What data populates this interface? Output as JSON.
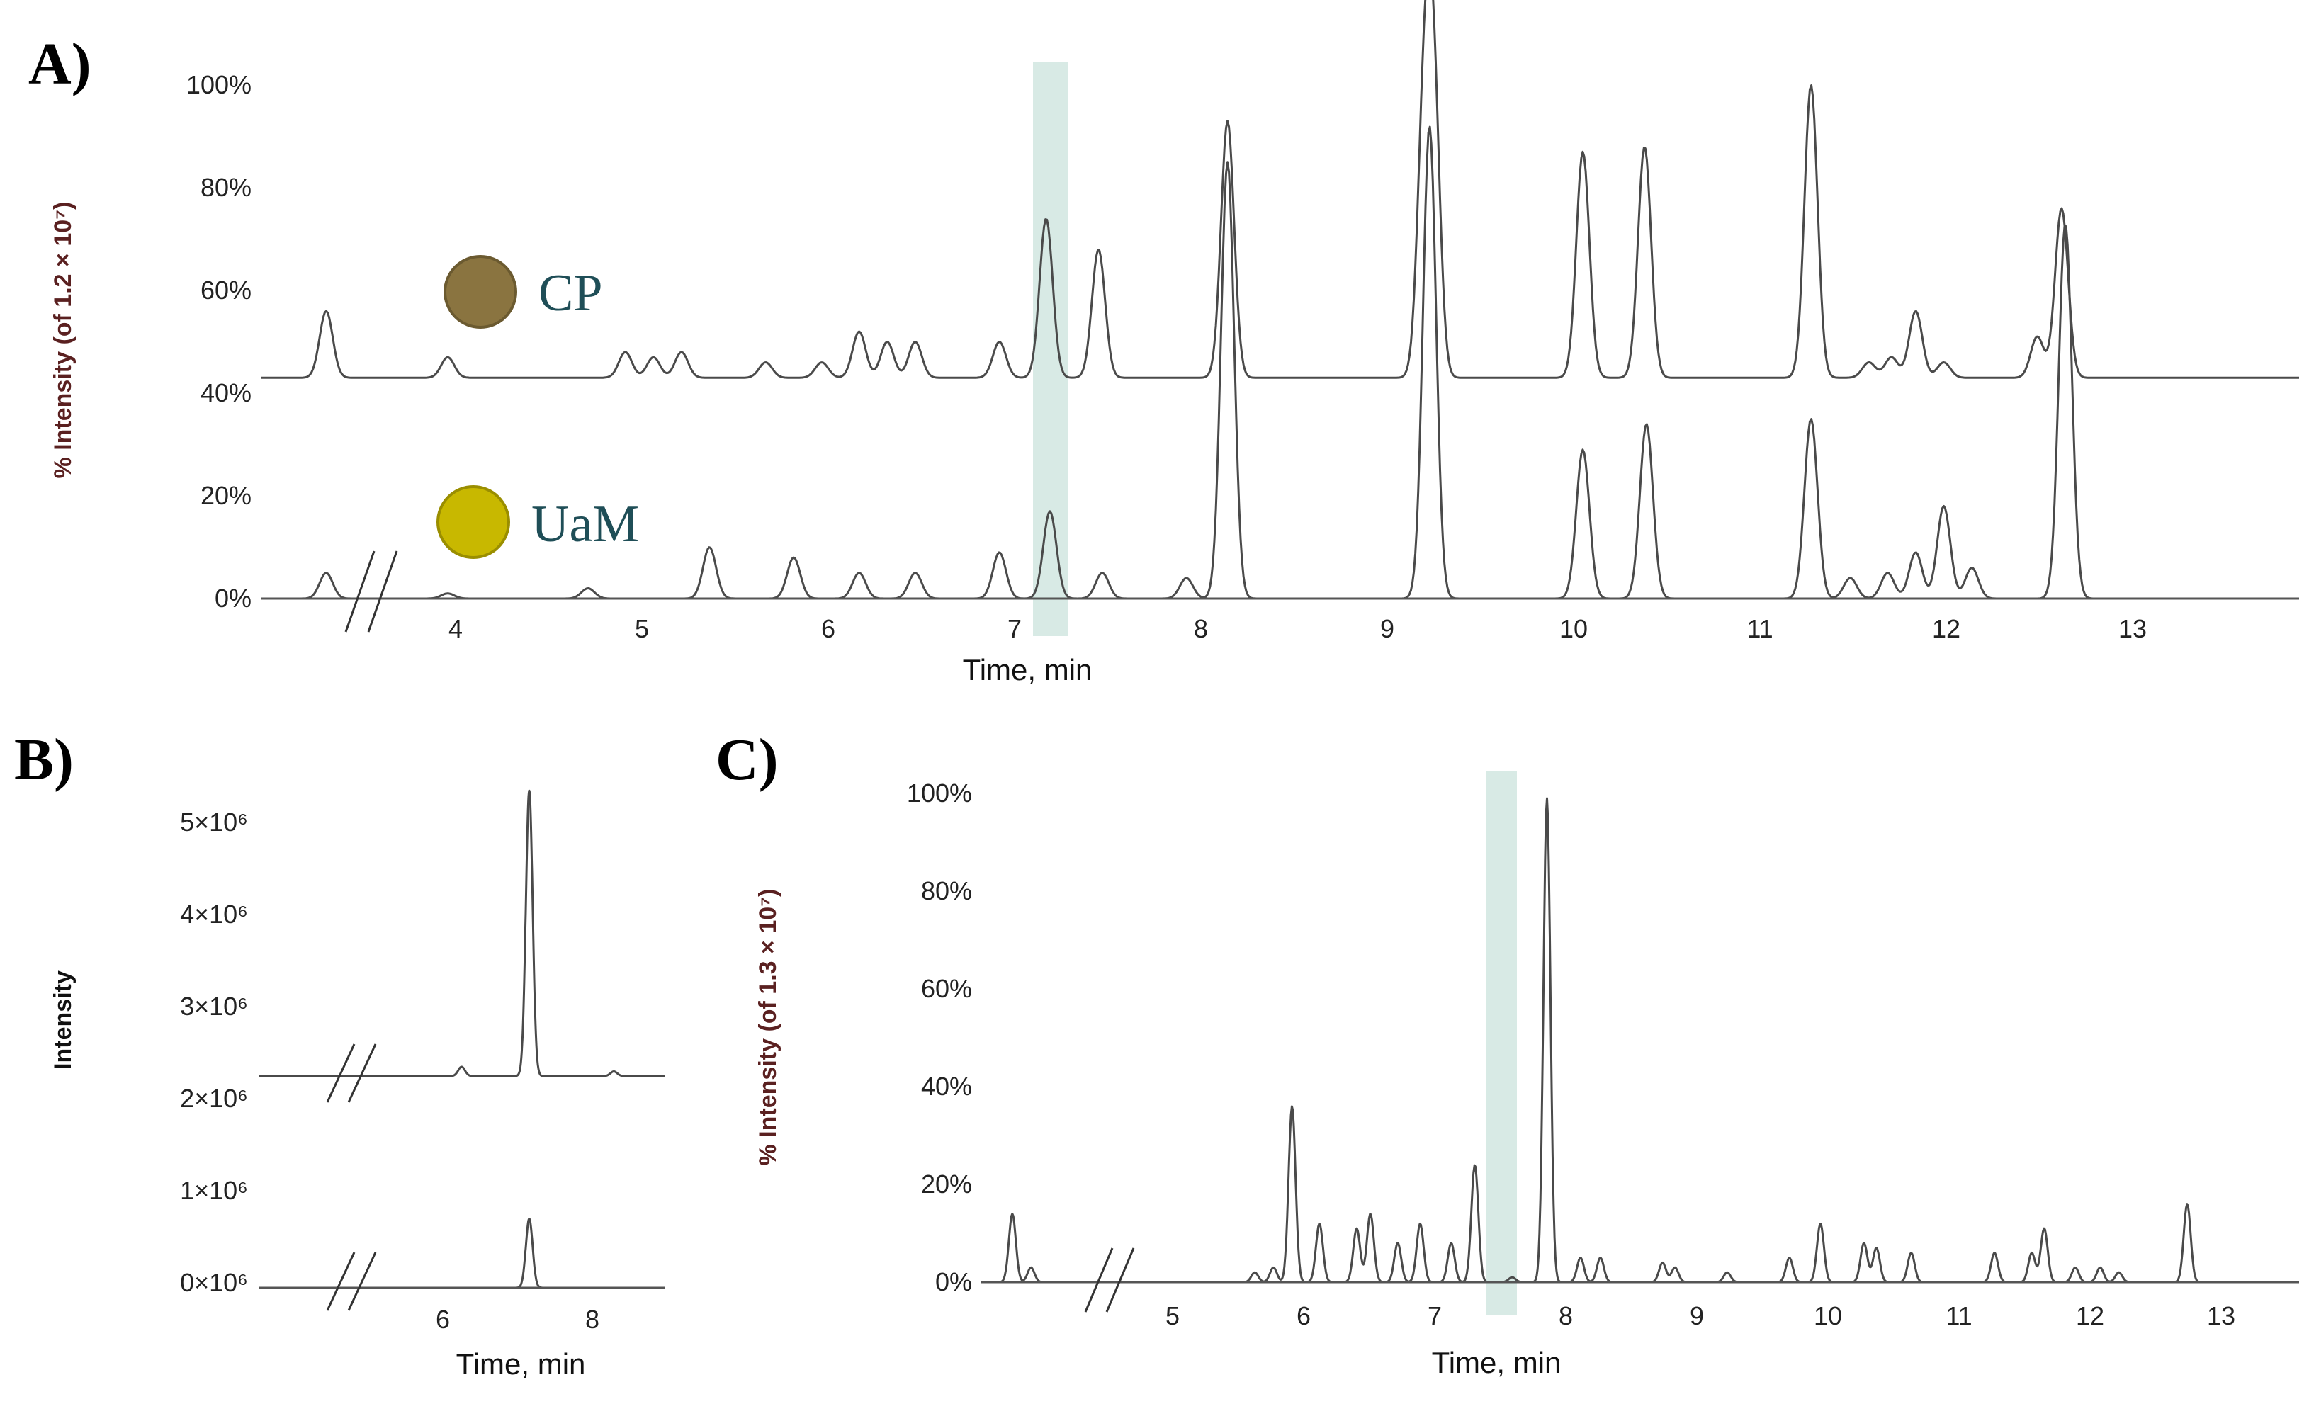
{
  "panels": {
    "a": {
      "letter": "A)",
      "ylabel": "% Intensity (of 1.2 × 10⁷)",
      "xlabel": "Time, min",
      "yticks": [
        "0%",
        "20%",
        "40%",
        "60%",
        "80%",
        "100%"
      ],
      "xticks": [
        "4",
        "5",
        "6",
        "7",
        "8",
        "9",
        "10",
        "11",
        "12",
        "13"
      ],
      "legend": [
        {
          "label": "CP",
          "color": "#8a7440"
        },
        {
          "label": "UaM",
          "color": "#c8b800"
        }
      ]
    },
    "b": {
      "letter": "B)",
      "ylabel": "Intensity",
      "xlabel": "Time, min",
      "yticks": [
        "0×10⁶",
        "1×10⁶",
        "2×10⁶",
        "3×10⁶",
        "4×10⁶",
        "5×10⁶"
      ],
      "xticks": [
        "6",
        "8"
      ]
    },
    "c": {
      "letter": "C)",
      "ylabel": "% Intensity (of 1.3 × 10⁷)",
      "xlabel": "Time, min",
      "yticks": [
        "0%",
        "20%",
        "40%",
        "60%",
        "80%",
        "100%"
      ],
      "xticks": [
        "5",
        "6",
        "7",
        "8",
        "9",
        "10",
        "11",
        "12",
        "13"
      ]
    }
  },
  "chart_data": [
    {
      "panel": "A",
      "type": "line",
      "xlabel": "Time, min",
      "ylabel": "% Intensity (of 1.2 × 10⁷)",
      "xlim": [
        3.0,
        13.9
      ],
      "ylim": [
        0,
        100
      ],
      "axis_break": true,
      "highlight_range": [
        7.1,
        7.33
      ],
      "series": [
        {
          "name": "CP",
          "offset": 43,
          "peaks": [
            [
              3.35,
              13
            ],
            [
              4.0,
              4
            ],
            [
              4.95,
              5
            ],
            [
              5.1,
              4
            ],
            [
              5.25,
              5
            ],
            [
              5.7,
              3
            ],
            [
              6.0,
              3
            ],
            [
              6.2,
              9
            ],
            [
              6.35,
              7
            ],
            [
              6.5,
              7
            ],
            [
              6.95,
              7
            ],
            [
              7.2,
              31
            ],
            [
              7.48,
              25
            ],
            [
              8.17,
              50
            ],
            [
              9.22,
              48
            ],
            [
              9.27,
              56
            ],
            [
              10.07,
              44
            ],
            [
              10.4,
              45
            ],
            [
              11.29,
              57
            ],
            [
              11.6,
              3
            ],
            [
              11.72,
              4
            ],
            [
              11.85,
              13
            ],
            [
              12.0,
              3
            ],
            [
              12.5,
              8
            ],
            [
              12.63,
              33
            ]
          ]
        },
        {
          "name": "UaM",
          "offset": 0,
          "peaks": [
            [
              3.35,
              5
            ],
            [
              4.0,
              1
            ],
            [
              4.75,
              2
            ],
            [
              5.4,
              10
            ],
            [
              5.85,
              8
            ],
            [
              6.2,
              5
            ],
            [
              6.5,
              5
            ],
            [
              6.95,
              9
            ],
            [
              7.22,
              17
            ],
            [
              7.5,
              5
            ],
            [
              7.95,
              4
            ],
            [
              8.17,
              85
            ],
            [
              9.25,
              92
            ],
            [
              10.07,
              29
            ],
            [
              10.41,
              34
            ],
            [
              11.29,
              35
            ],
            [
              11.5,
              4
            ],
            [
              11.7,
              5
            ],
            [
              11.85,
              9
            ],
            [
              12.0,
              18
            ],
            [
              12.15,
              6
            ],
            [
              12.65,
              73
            ]
          ]
        }
      ]
    },
    {
      "panel": "B",
      "type": "line",
      "xlabel": "Time, min",
      "ylabel": "Intensity",
      "xlim": [
        4.0,
        8.8
      ],
      "ylim": [
        0,
        5500000
      ],
      "axis_break": true,
      "series": [
        {
          "offset": 2300000,
          "peaks": [
            [
              6.4,
              100000
            ],
            [
              7.2,
              3100000
            ],
            [
              8.2,
              50000
            ]
          ]
        },
        {
          "offset": 0,
          "peaks": [
            [
              7.2,
              750000
            ]
          ]
        }
      ]
    },
    {
      "panel": "C",
      "type": "line",
      "xlabel": "Time, min",
      "ylabel": "% Intensity (of 1.3 × 10⁷)",
      "xlim": [
        3.0,
        13.6
      ],
      "ylim": [
        0,
        100
      ],
      "axis_break": true,
      "highlight_range": [
        7.42,
        7.65
      ],
      "series": [
        {
          "offset": 0,
          "peaks": [
            [
              3.25,
              14
            ],
            [
              3.4,
              3
            ],
            [
              5.2,
              2
            ],
            [
              5.35,
              3
            ],
            [
              5.5,
              36
            ],
            [
              5.72,
              12
            ],
            [
              6.02,
              11
            ],
            [
              6.13,
              14
            ],
            [
              6.35,
              8
            ],
            [
              6.53,
              12
            ],
            [
              6.78,
              8
            ],
            [
              6.97,
              24
            ],
            [
              7.27,
              1
            ],
            [
              7.55,
              99
            ],
            [
              7.82,
              5
            ],
            [
              7.98,
              5
            ],
            [
              8.48,
              4
            ],
            [
              8.58,
              3
            ],
            [
              9.0,
              2
            ],
            [
              9.5,
              5
            ],
            [
              9.75,
              12
            ],
            [
              10.1,
              8
            ],
            [
              10.2,
              7
            ],
            [
              10.48,
              6
            ],
            [
              11.15,
              6
            ],
            [
              11.45,
              6
            ],
            [
              11.55,
              11
            ],
            [
              11.8,
              3
            ],
            [
              12.0,
              3
            ],
            [
              12.15,
              2
            ],
            [
              12.7,
              16
            ]
          ]
        }
      ]
    }
  ]
}
